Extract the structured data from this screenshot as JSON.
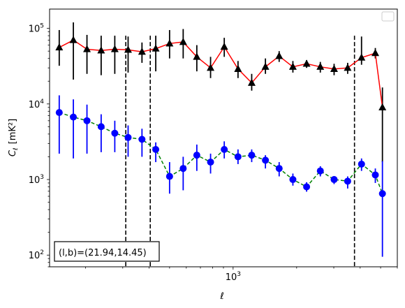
{
  "chart_data": {
    "type": "line",
    "xscale": "log",
    "yscale": "log",
    "xlabel": "ℓ",
    "ylabel_main": "C",
    "ylabel_sub": "ℓ",
    "ylabel_unit": "[mK²]",
    "xlim": [
      135,
      6000
    ],
    "ylim": [
      70,
      180000
    ],
    "x_ticks": [
      {
        "value": 1000,
        "base": "10",
        "exp": "3"
      }
    ],
    "y_ticks": [
      {
        "value": 100,
        "base": "10",
        "exp": "2"
      },
      {
        "value": 1000,
        "base": "10",
        "exp": "3"
      },
      {
        "value": 10000,
        "base": "10",
        "exp": "4"
      },
      {
        "value": 100000,
        "base": "10",
        "exp": "5"
      }
    ],
    "vlines": [
      310,
      405,
      3760
    ],
    "annotation": "(l,b)=(21.94,14.45)",
    "legend": {
      "placement": "top-right",
      "entries": []
    },
    "series": [
      {
        "marker": "triangle",
        "line_color": "#ff0000",
        "line_style": "solid",
        "marker_color": "#000000",
        "error_color": "#000000",
        "x": [
          150,
          175,
          203,
          237,
          275,
          318,
          370,
          430,
          500,
          580,
          673,
          782,
          908,
          1055,
          1225,
          1423,
          1653,
          1920,
          2230,
          2590,
          3010,
          3490,
          4060,
          4720,
          5100
        ],
        "y": [
          56000,
          70000,
          53000,
          51000,
          53000,
          52000,
          49000,
          54000,
          63000,
          66000,
          42000,
          30000,
          57000,
          29000,
          19000,
          31000,
          43000,
          31000,
          34000,
          31000,
          29000,
          30000,
          41000,
          47000,
          9000
        ],
        "y_low": [
          32000,
          21000,
          25000,
          24000,
          25000,
          26000,
          35000,
          27000,
          40000,
          40000,
          27000,
          22000,
          42000,
          22000,
          15000,
          25000,
          36000,
          26000,
          30000,
          26000,
          24000,
          25000,
          33000,
          40000,
          1700
        ],
        "y_high": [
          95000,
          120000,
          82000,
          80000,
          80000,
          78000,
          65000,
          80000,
          95000,
          98000,
          60000,
          42000,
          75000,
          37000,
          25000,
          40000,
          50000,
          37000,
          38000,
          36000,
          34000,
          35000,
          78000,
          55000,
          16500
        ]
      },
      {
        "marker": "circle",
        "line_color": "#008000",
        "line_style": "dashed",
        "marker_color": "#0000ff",
        "error_color": "#0000ff",
        "x": [
          150,
          175,
          203,
          237,
          275,
          318,
          370,
          430,
          500,
          580,
          673,
          782,
          908,
          1055,
          1225,
          1423,
          1653,
          1920,
          2230,
          2590,
          3010,
          3490,
          4060,
          4720,
          5100
        ],
        "y": [
          7700,
          6700,
          6000,
          5000,
          4100,
          3600,
          3400,
          2500,
          1100,
          1400,
          2100,
          1700,
          2500,
          2000,
          2100,
          1800,
          1400,
          1000,
          800,
          1300,
          1000,
          950,
          1600,
          1150,
          650
        ],
        "y_low": [
          2200,
          1900,
          2200,
          2300,
          2300,
          2000,
          2000,
          1700,
          650,
          720,
          1300,
          1200,
          1900,
          1600,
          1700,
          1400,
          1100,
          830,
          690,
          1100,
          870,
          760,
          1300,
          900,
          95
        ],
        "y_high": [
          13000,
          11500,
          9800,
          7300,
          6000,
          5200,
          4700,
          3100,
          1700,
          2000,
          2900,
          2200,
          3200,
          2500,
          2500,
          2100,
          1700,
          1200,
          920,
          1500,
          1100,
          1100,
          1900,
          1400,
          1750
        ]
      }
    ]
  }
}
